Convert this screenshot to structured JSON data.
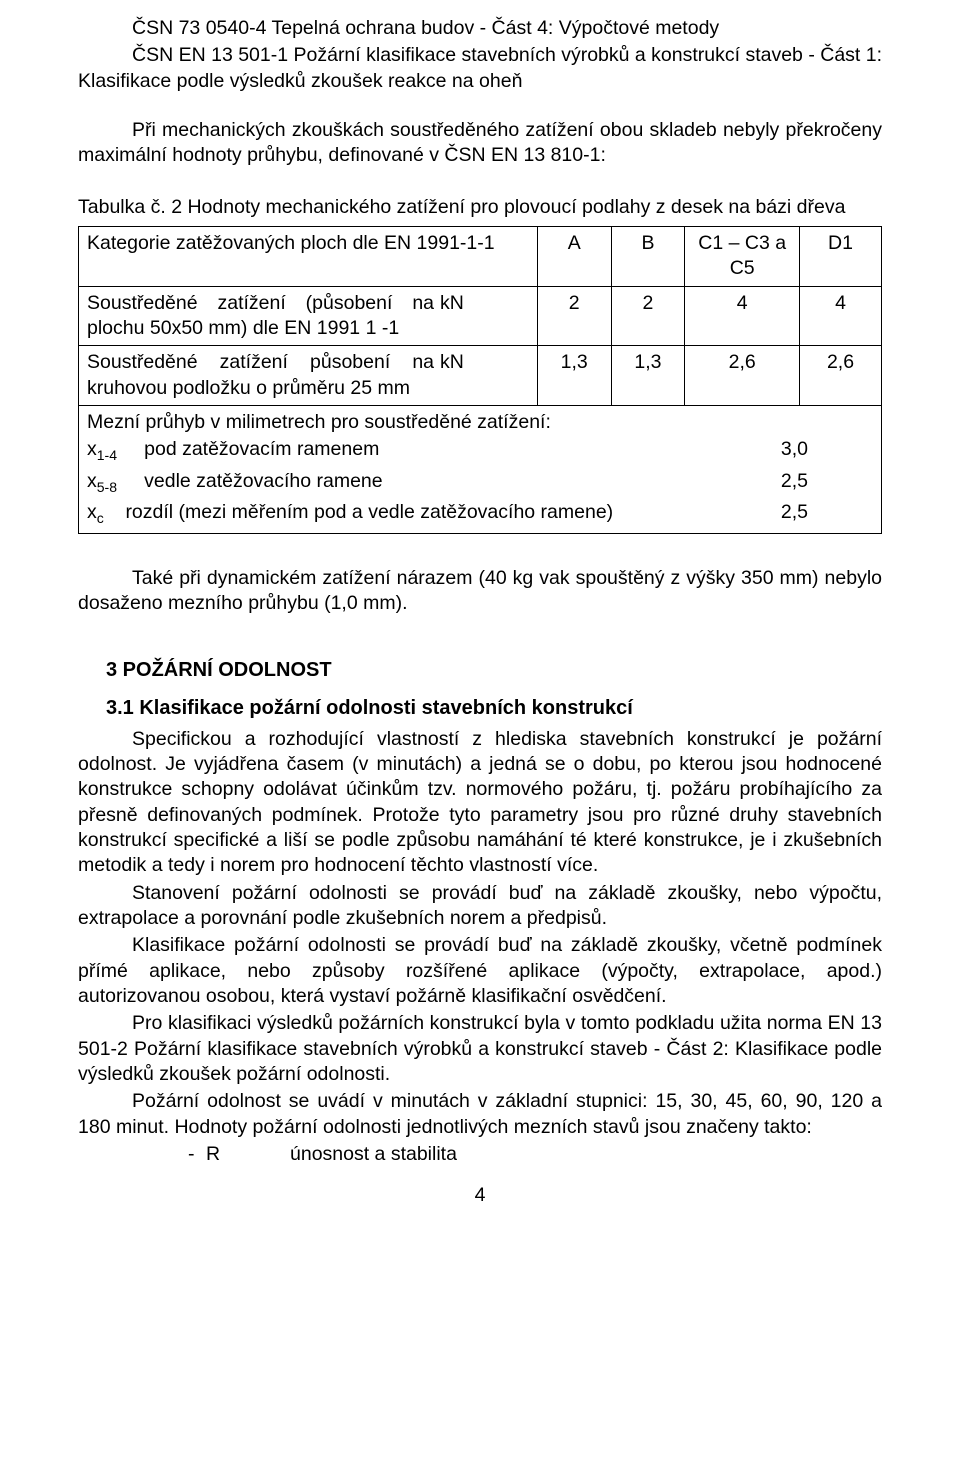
{
  "refs": {
    "line1": "ČSN 73 0540-4 Tepelná ochrana budov - Část 4: Výpočtové metody",
    "line2": "ČSN EN 13 501-1 Požární klasifikace stavebních výrobků a konstrukcí staveb - Část 1: Klasifikace podle výsledků zkoušek reakce na oheň"
  },
  "para_intro": "Při mechanických zkouškách soustředěného zatížení obou skladeb nebyly překročeny maximální hodnoty průhybu, definované v ČSN EN 13 810-1:",
  "table": {
    "caption": "Tabulka č. 2 Hodnoty mechanického zatížení pro plovoucí podlahy z desek na bázi dřeva",
    "header": {
      "label": "Kategorie zatěžovaných ploch dle EN 1991-1-1",
      "A": "A",
      "B": "B",
      "C": "C1 – C3 a C5",
      "D": "D1"
    },
    "row2": {
      "label": "Soustředěné zatížení (působení na plochu 50x50 mm) dle EN 1991  1 -1",
      "unit": "kN",
      "A": "2",
      "B": "2",
      "C": "4",
      "D": "4"
    },
    "row3": {
      "label": "Soustředěné zatížení působení na kruhovou podložku o průměru 25 mm",
      "unit": "kN",
      "A": "1,3",
      "B": "1,3",
      "C": "2,6",
      "D": "2,6"
    },
    "merged": {
      "title": "Mezní průhyb v milimetrech pro soustředěné zatížení:",
      "x14_prefix": "x",
      "x14_sub": "1-4",
      "x14_label": "pod zatěžovacím ramenem",
      "x14_val": "3,0",
      "x58_prefix": "x",
      "x58_sub": "5-8",
      "x58_label": "vedle zatěžovacího ramene",
      "x58_val": "2,5",
      "xc_prefix": "x",
      "xc_sub": "c",
      "xc_label": "rozdíl (mezi měřením pod a vedle zatěžovacího ramene)",
      "xc_val": "2,5"
    }
  },
  "after_table": "Také při dynamickém zatížení nárazem (40 kg vak spouštěný z výšky 350 mm) nebylo dosaženo mezního průhybu (1,0 mm).",
  "sec3": {
    "title": "3  POŽÁRNÍ ODOLNOST",
    "sub1_title": "3.1  Klasifikace požární odolnosti stavebních konstrukcí",
    "p1": "Specifickou a rozhodující vlastností z hlediska stavebních konstrukcí je požární odolnost. Je vyjádřena časem (v minutách) a jedná se o dobu, po kterou jsou hodnocené konstrukce schopny odolávat účinkům tzv. normového požáru, tj. požáru probíhajícího za přesně definovaných podmínek. Protože tyto parametry jsou pro různé druhy stavebních konstrukcí specifické a liší se podle způsobu namáhání té které konstrukce, je i zkušebních metodik a tedy i norem pro hodnocení těchto vlastností více.",
    "p2": "Stanovení požární odolnosti se provádí buď na základě zkoušky, nebo výpočtu, extrapolace a porovnání podle zkušebních norem a předpisů.",
    "p3": "Klasifikace požární odolnosti se provádí buď na základě zkoušky, včetně podmínek přímé aplikace, nebo způsoby rozšířené aplikace (výpočty, extrapolace, apod.) autorizovanou osobou, která vystaví požárně klasifikační osvědčení.",
    "p4": "Pro klasifikaci výsledků požárních konstrukcí byla v tomto podkladu užita norma EN 13 501-2 Požární klasifikace stavebních výrobků a konstrukcí staveb - Část 2: Klasifikace podle výsledků zkoušek požární odolnosti.",
    "p5": "Požární odolnost se uvádí v minutách v základní stupnici: 15, 30, 45, 60, 90, 120 a 180 minut. Hodnoty požární odolnosti jednotlivých mezních stavů jsou značeny takto:",
    "list_r_dash": "-",
    "list_r_code": "R",
    "list_r_text": "únosnost a stabilita"
  },
  "page_number": "4"
}
